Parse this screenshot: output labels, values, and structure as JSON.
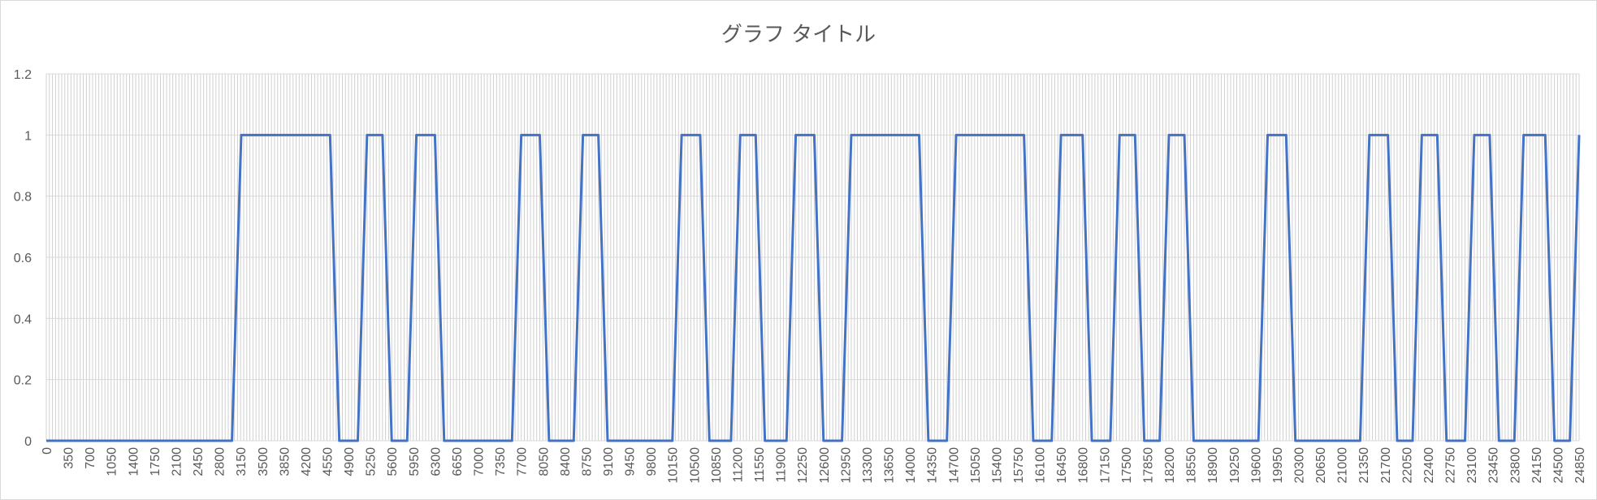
{
  "chart_data": {
    "type": "line",
    "title": "グラフ タイトル",
    "xlabel": "",
    "ylabel": "",
    "xlim": [
      0,
      24850
    ],
    "ylim": [
      0,
      1.2
    ],
    "y_ticks": [
      "0",
      "0.2",
      "0.4",
      "0.6",
      "0.8",
      "1",
      "1.2"
    ],
    "x_tick_step": 350,
    "x_tick_labels": [
      "0",
      "350",
      "700",
      "1050",
      "1400",
      "1750",
      "2100",
      "2450",
      "2800",
      "3150",
      "3500",
      "3850",
      "4200",
      "4550",
      "4900",
      "5250",
      "5600",
      "5950",
      "6300",
      "6650",
      "7000",
      "7350",
      "7700",
      "8050",
      "8400",
      "8750",
      "9100",
      "9450",
      "9800",
      "10150",
      "10500",
      "10850",
      "11200",
      "11550",
      "11900",
      "12250",
      "12600",
      "12950",
      "13300",
      "13650",
      "14000",
      "14350",
      "14700",
      "15050",
      "15400",
      "15750",
      "16100",
      "16450",
      "16800",
      "17150",
      "17500",
      "17850",
      "18200",
      "18550",
      "18900",
      "19250",
      "19600",
      "19950",
      "20300",
      "20650",
      "21000",
      "21350",
      "21700",
      "22050",
      "22400",
      "22750",
      "23100",
      "23450",
      "23800",
      "24150",
      "24500",
      "24850"
    ],
    "grid": true,
    "legend": "none",
    "series": [
      {
        "color": "#4472c4",
        "x": [
          0,
          3010,
          3160,
          4600,
          4750,
          5050,
          5200,
          5450,
          5600,
          5850,
          6000,
          6300,
          6450,
          7550,
          7700,
          8000,
          8150,
          8550,
          8700,
          8950,
          9100,
          10150,
          10300,
          10600,
          10750,
          11100,
          11250,
          11500,
          11650,
          12000,
          12150,
          12450,
          12600,
          12900,
          13050,
          14150,
          14300,
          14600,
          14750,
          15850,
          16000,
          16300,
          16450,
          16800,
          16950,
          17250,
          17400,
          17650,
          17800,
          18050,
          18200,
          18450,
          18600,
          19650,
          19800,
          20100,
          20250,
          21300,
          21450,
          21750,
          21900,
          22150,
          22300,
          22550,
          22700,
          23000,
          23150,
          23400,
          23550,
          23800,
          23950,
          24300,
          24450,
          24700,
          24850
        ],
        "y": [
          0,
          0,
          1,
          1,
          0,
          0,
          1,
          1,
          0,
          0,
          1,
          1,
          0,
          0,
          1,
          1,
          0,
          0,
          1,
          1,
          0,
          0,
          1,
          1,
          0,
          0,
          1,
          1,
          0,
          0,
          1,
          1,
          0,
          0,
          1,
          1,
          0,
          0,
          1,
          1,
          0,
          0,
          1,
          1,
          0,
          0,
          1,
          1,
          0,
          0,
          1,
          1,
          0,
          0,
          1,
          1,
          0,
          0,
          1,
          1,
          0,
          0,
          1,
          1,
          0,
          0,
          1,
          1,
          0,
          0,
          1,
          1,
          0,
          0,
          1
        ]
      }
    ]
  }
}
